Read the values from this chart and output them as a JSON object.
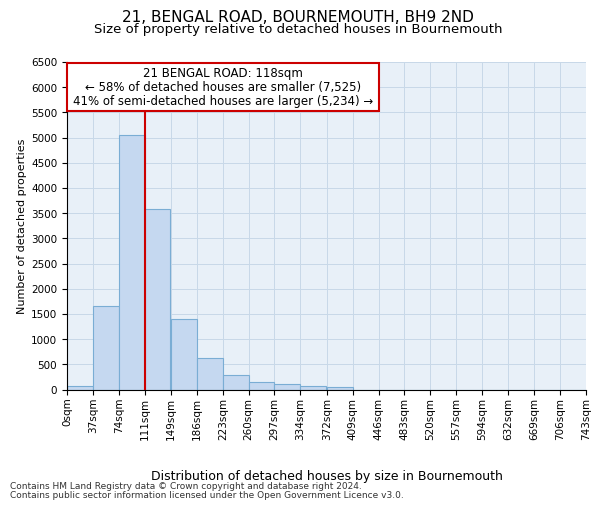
{
  "title1": "21, BENGAL ROAD, BOURNEMOUTH, BH9 2ND",
  "title2": "Size of property relative to detached houses in Bournemouth",
  "xlabel": "Distribution of detached houses by size in Bournemouth",
  "ylabel": "Number of detached properties",
  "footer1": "Contains HM Land Registry data © Crown copyright and database right 2024.",
  "footer2": "Contains public sector information licensed under the Open Government Licence v3.0.",
  "annotation_title": "21 BENGAL ROAD: 118sqm",
  "annotation_line1": "← 58% of detached houses are smaller (7,525)",
  "annotation_line2": "41% of semi-detached houses are larger (5,234) →",
  "bar_values": [
    75,
    1650,
    5060,
    3580,
    1400,
    620,
    290,
    145,
    110,
    75,
    55,
    0,
    0,
    0,
    0,
    0,
    0,
    0,
    0,
    0
  ],
  "bin_edges": [
    0,
    37,
    74,
    111,
    149,
    186,
    223,
    260,
    297,
    334,
    372,
    409,
    446,
    483,
    520,
    557,
    594,
    632,
    669,
    706,
    743
  ],
  "tick_labels": [
    "0sqm",
    "37sqm",
    "74sqm",
    "111sqm",
    "149sqm",
    "186sqm",
    "223sqm",
    "260sqm",
    "297sqm",
    "334sqm",
    "372sqm",
    "409sqm",
    "446sqm",
    "483sqm",
    "520sqm",
    "557sqm",
    "594sqm",
    "632sqm",
    "669sqm",
    "706sqm",
    "743sqm"
  ],
  "bar_color": "#c5d8f0",
  "bar_edge_color": "#7aadd4",
  "vline_color": "#cc0000",
  "vline_x": 111,
  "ylim": [
    0,
    6500
  ],
  "yticks": [
    0,
    500,
    1000,
    1500,
    2000,
    2500,
    3000,
    3500,
    4000,
    4500,
    5000,
    5500,
    6000,
    6500
  ],
  "grid_color": "#c8d8e8",
  "bg_color": "#e8f0f8",
  "annotation_box_color": "#ffffff",
  "annotation_box_edge": "#cc0000",
  "title1_fontsize": 11,
  "title2_fontsize": 9.5,
  "xlabel_fontsize": 9,
  "ylabel_fontsize": 8,
  "tick_fontsize": 7.5,
  "annotation_fontsize": 8.5,
  "footer_fontsize": 6.5
}
